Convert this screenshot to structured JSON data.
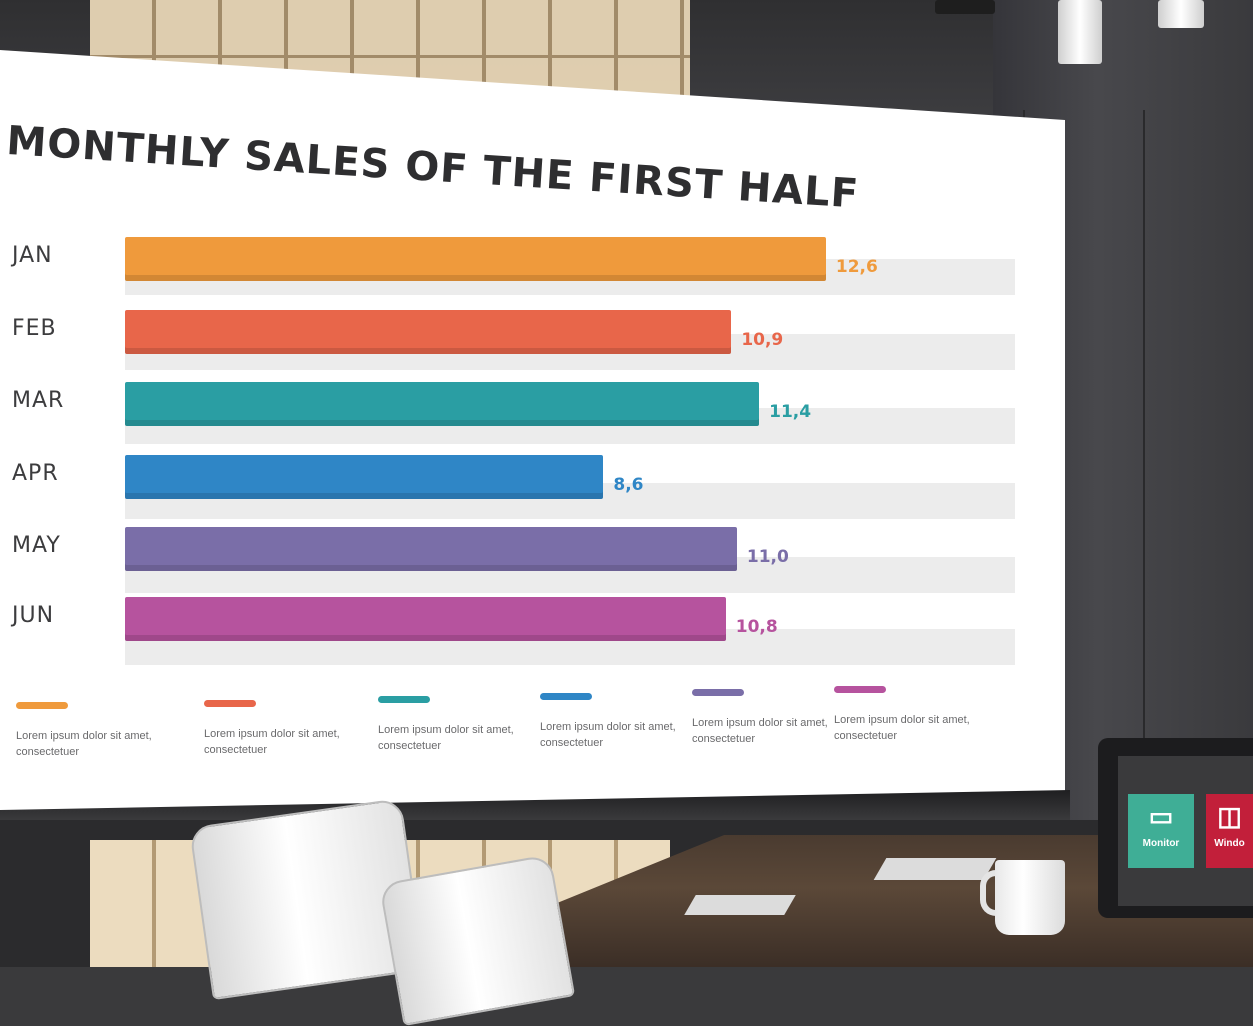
{
  "chart_data": {
    "type": "bar",
    "title": "MONTHLY SALES OF THE FIRST HALF",
    "categories": [
      "JAN",
      "FEB",
      "MAR",
      "APR",
      "MAY",
      "JUN"
    ],
    "values": [
      12.6,
      10.9,
      11.4,
      8.6,
      11.0,
      10.8
    ],
    "value_labels": [
      "12,6",
      "10,9",
      "11,4",
      "8,6",
      "11,0",
      "10,8"
    ],
    "colors": [
      "#ef9a3c",
      "#e8664a",
      "#2a9ea3",
      "#2f86c6",
      "#7a6ea8",
      "#b6539e"
    ],
    "value_label_colors": [
      "#ef9a3c",
      "#e8664a",
      "#2a9ea3",
      "#2f86c6",
      "#7a6ea8",
      "#b6539e"
    ],
    "orientation": "horizontal",
    "xlim": [
      0,
      16
    ],
    "grid": false,
    "legend": {
      "placement": "bottom",
      "entries": [
        "Lorem ipsum dolor sit amet, consectetuer",
        "Lorem ipsum dolor sit amet, consectetuer",
        "Lorem ipsum dolor sit amet, consectetuer",
        "Lorem ipsum dolor sit amet, consectetuer",
        "Lorem ipsum dolor sit amet, consectetuer",
        "Lorem ipsum dolor sit amet, consectetuer"
      ]
    }
  },
  "tablet": {
    "tiles": [
      {
        "label": "Monitor",
        "icon": "monitor-icon",
        "color": "#3fae96"
      },
      {
        "label": "Windo",
        "icon": "window-icon",
        "color": "#c21f3a"
      }
    ]
  }
}
